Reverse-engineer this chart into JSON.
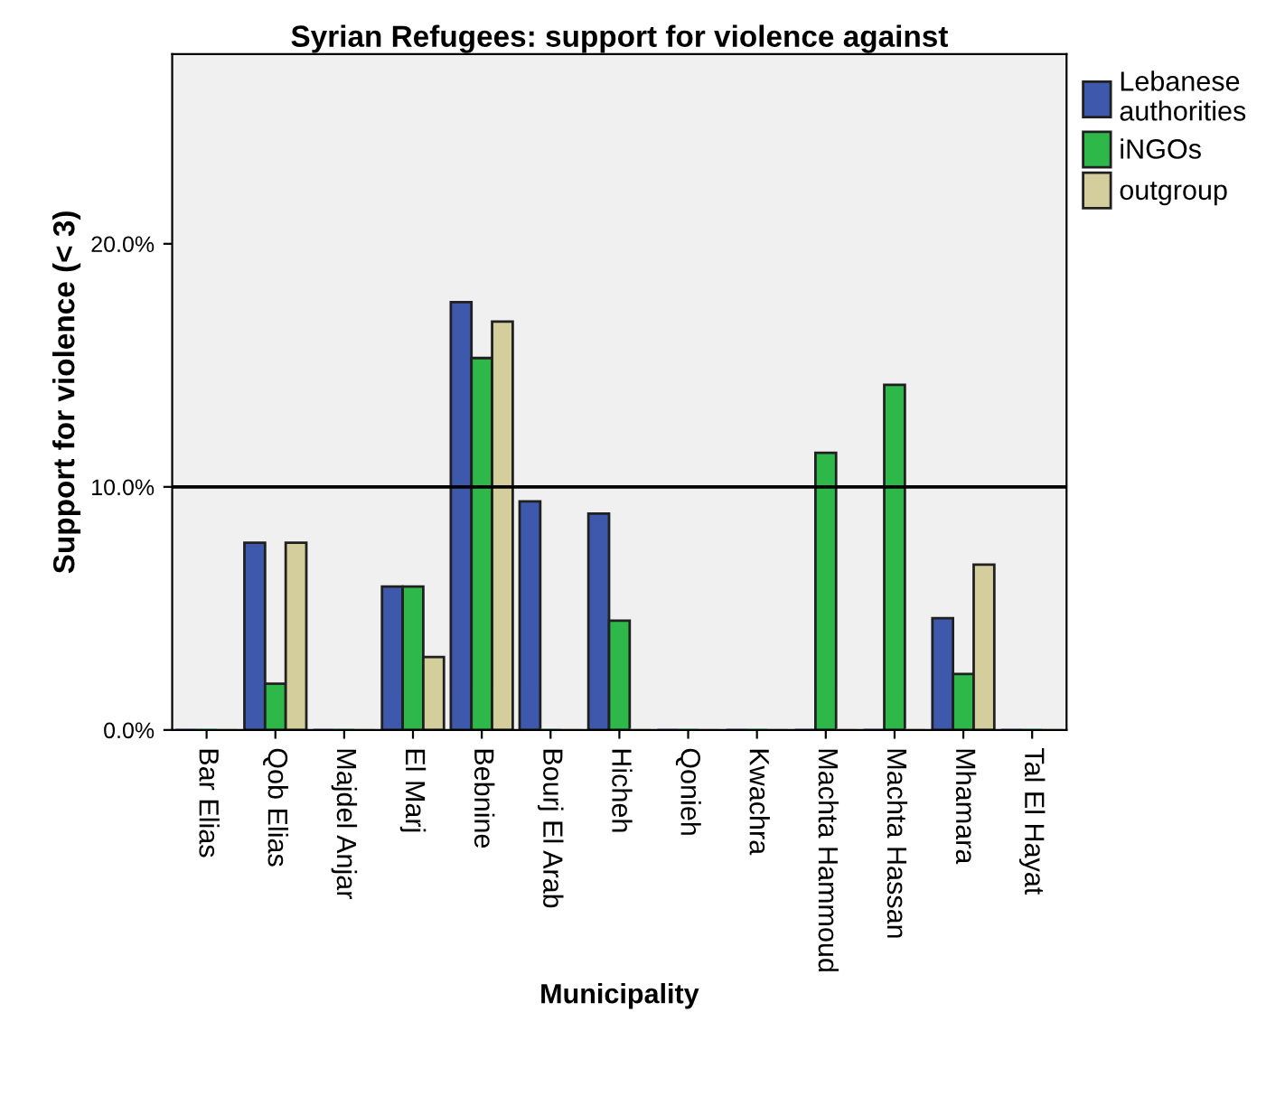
{
  "chart_data": {
    "type": "bar",
    "title": "Syrian Refugees: support for violence against",
    "xlabel": "Municipality",
    "ylabel": "Support for violence (< 3)",
    "categories": [
      "Bar Elias",
      "Qob Elias",
      "Majdel Anjar",
      "El Marj",
      "Bebnine",
      "Bourj El Arab",
      "Hicheh",
      "Qonieh",
      "Kwachra",
      "Machta Hammoud",
      "Machta Hassan",
      "Mhamara",
      "Tal El Hayat"
    ],
    "series": [
      {
        "name": "Lebanese authorities",
        "color": "#3e58ac",
        "values": [
          0,
          7.7,
          0,
          5.9,
          17.6,
          9.4,
          8.9,
          0,
          0,
          0,
          0,
          4.6,
          0
        ]
      },
      {
        "name": "iNGOs",
        "color": "#2fb84a",
        "values": [
          0,
          1.9,
          0,
          5.9,
          15.3,
          0,
          4.5,
          0,
          0,
          11.4,
          14.2,
          2.3,
          0
        ]
      },
      {
        "name": "outgroup",
        "color": "#d3ce9c",
        "values": [
          0,
          7.7,
          0,
          3.0,
          16.8,
          0,
          0,
          0,
          0,
          0,
          0,
          6.8,
          0
        ]
      }
    ],
    "ylim": [
      0,
      27.8
    ],
    "yticks": [
      {
        "value": 0,
        "label": "0.0%"
      },
      {
        "value": 10,
        "label": "10.0%"
      },
      {
        "value": 20,
        "label": "20.0%"
      }
    ],
    "ref_lines": [
      {
        "axis": "y",
        "value": 10,
        "color": "#000000"
      }
    ],
    "legend": "top right",
    "grid": false
  }
}
